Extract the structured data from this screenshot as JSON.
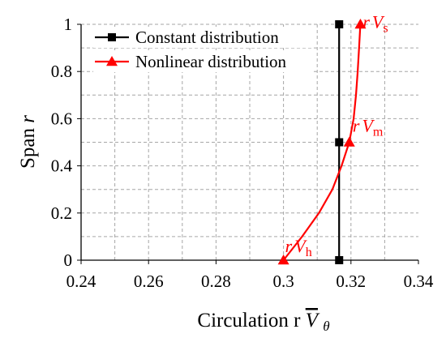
{
  "chart_data": {
    "type": "line",
    "xlabel": "Circulation r",
    "xlabel_symbol": "V",
    "xlabel_subscript": "θ",
    "ylabel": "Span",
    "ylabel_var": "r",
    "xlim": [
      0.24,
      0.34
    ],
    "ylim": [
      0,
      1
    ],
    "x_ticks": [
      "0.24",
      "0.26",
      "0.28",
      "0.3",
      "0.32",
      "0.34"
    ],
    "y_ticks": [
      "0",
      "0.2",
      "0.4",
      "0.6",
      "0.8",
      "1"
    ],
    "x_tick_values": [
      0.24,
      0.26,
      0.28,
      0.3,
      0.32,
      0.34
    ],
    "y_tick_values": [
      0,
      0.2,
      0.4,
      0.6,
      0.8,
      1.0
    ],
    "x_minor_step": 0.01,
    "y_minor_step": 0.1,
    "grid": true,
    "grid_style": "dashed",
    "legend_position": "top-left",
    "series": [
      {
        "name": "Constant distribution",
        "color": "#000000",
        "marker": "square",
        "x": [
          0.3165,
          0.3165,
          0.3165
        ],
        "y": [
          0,
          0.5,
          1.0
        ],
        "curve_x": [
          0.3165,
          0.3165
        ],
        "curve_y": [
          0,
          1.0
        ]
      },
      {
        "name": "Nonlinear distribution",
        "color": "#ff0000",
        "marker": "triangle",
        "x": [
          0.3,
          0.3195,
          0.3228
        ],
        "y": [
          0,
          0.5,
          1.0
        ],
        "curve_x": [
          0.3,
          0.3055,
          0.3105,
          0.3145,
          0.3172,
          0.3195,
          0.3208,
          0.3215,
          0.322,
          0.3224,
          0.3228
        ],
        "curve_y": [
          0,
          0.1,
          0.2,
          0.3,
          0.4,
          0.5,
          0.6,
          0.7,
          0.8,
          0.9,
          1.0
        ]
      }
    ],
    "annotations": [
      {
        "base": "r",
        "sym": "V",
        "sub": "h",
        "x": 0.3005,
        "y": 0.035,
        "color": "#ff0000"
      },
      {
        "base": "r",
        "sym": "V",
        "sub": "m",
        "x": 0.3205,
        "y": 0.545,
        "color": "#ff0000"
      },
      {
        "base": "r",
        "sym": "V",
        "sub": "s",
        "x": 0.3235,
        "y": 0.985,
        "color": "#ff0000"
      }
    ]
  }
}
